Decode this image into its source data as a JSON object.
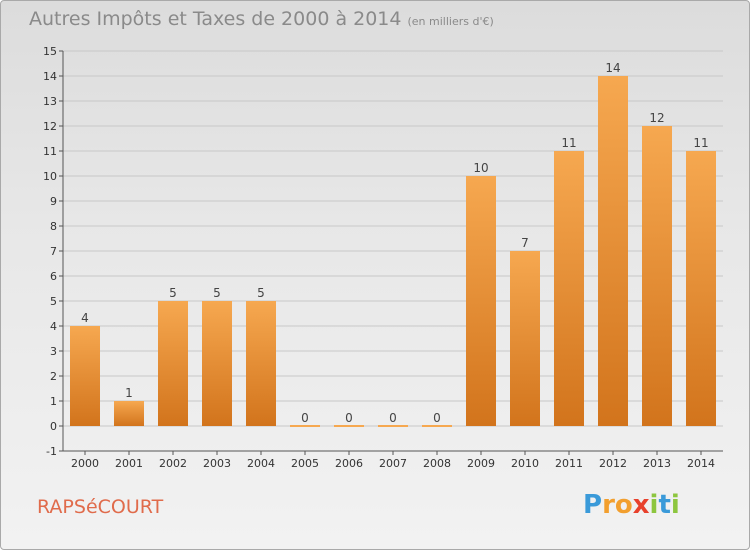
{
  "header": {
    "title": "Autres Impôts et Taxes de 2000 à 2014",
    "unit": "(en milliers d'€)"
  },
  "footer": {
    "commune": "RAPSéCOURT",
    "logo_letters": [
      "P",
      "r",
      "o",
      "x",
      "i",
      "t",
      "i"
    ],
    "logo_colors": [
      "#3a9ad9",
      "#f29f2e",
      "#f29f2e",
      "#e8412c",
      "#8dc63f",
      "#3a9ad9",
      "#8dc63f"
    ]
  },
  "colors": {
    "bar_top": "#f6a850",
    "bar_bottom": "#d2741c",
    "axis": "#555555",
    "grid": "#c8c8c8"
  },
  "chart_data": {
    "type": "bar",
    "title": "Autres Impôts et Taxes de 2000 à 2014",
    "subtitle": "(en milliers d'€)",
    "xlabel": "",
    "ylabel": "",
    "categories": [
      "2000",
      "2001",
      "2002",
      "2003",
      "2004",
      "2005",
      "2006",
      "2007",
      "2008",
      "2009",
      "2010",
      "2011",
      "2012",
      "2013",
      "2014"
    ],
    "values": [
      4,
      1,
      5,
      5,
      5,
      0,
      0,
      0,
      0,
      10,
      7,
      11,
      14,
      12,
      11
    ],
    "ylim": [
      -1,
      15
    ],
    "yticks": [
      -1,
      0,
      1,
      2,
      3,
      4,
      5,
      6,
      7,
      8,
      9,
      10,
      11,
      12,
      13,
      14,
      15
    ],
    "grid": true,
    "legend": "none"
  }
}
